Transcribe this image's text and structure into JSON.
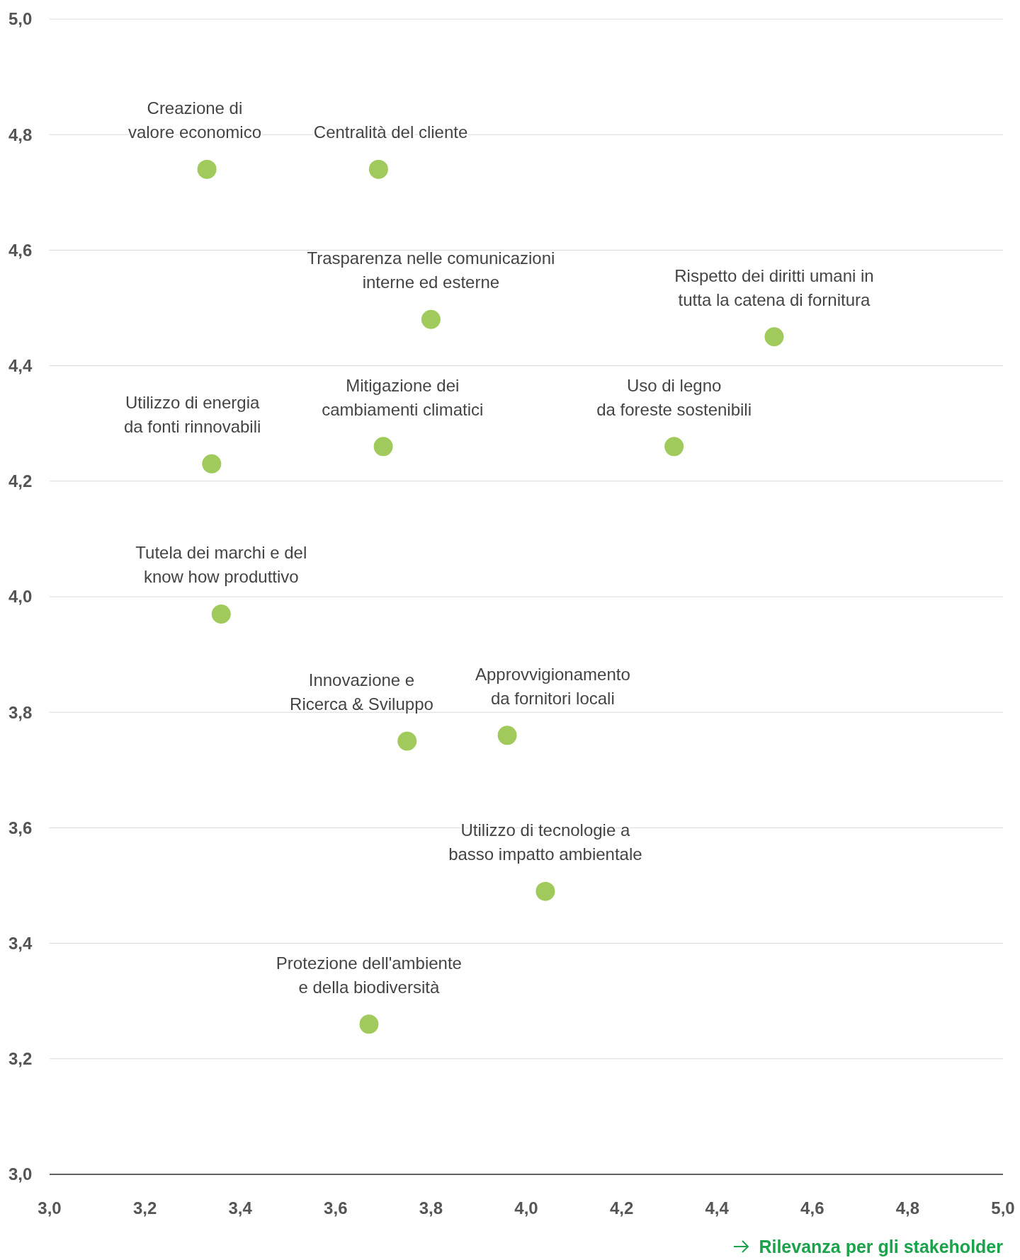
{
  "chart_data": {
    "type": "scatter",
    "xlabel": "Rilevanza per gli stakeholder",
    "xlim": [
      3,
      5
    ],
    "ylim": [
      3,
      5
    ],
    "xticks": [
      {
        "value": 3,
        "label": "3,0"
      },
      {
        "value": 3.2,
        "label": "3,2"
      },
      {
        "value": 3.4,
        "label": "3,4"
      },
      {
        "value": 3.6,
        "label": "3,6"
      },
      {
        "value": 3.8,
        "label": "3,8"
      },
      {
        "value": 4,
        "label": "4,0"
      },
      {
        "value": 4.2,
        "label": "4,2"
      },
      {
        "value": 4.4,
        "label": "4,4"
      },
      {
        "value": 4.6,
        "label": "4,6"
      },
      {
        "value": 4.8,
        "label": "4,8"
      },
      {
        "value": 5,
        "label": "5,0"
      }
    ],
    "yticks": [
      {
        "value": 3,
        "label": "3,0"
      },
      {
        "value": 3.2,
        "label": "3,2"
      },
      {
        "value": 3.4,
        "label": "3,4"
      },
      {
        "value": 3.6,
        "label": "3,6"
      },
      {
        "value": 3.8,
        "label": "3,8"
      },
      {
        "value": 4,
        "label": "4,0"
      },
      {
        "value": 4.2,
        "label": "4,2"
      },
      {
        "value": 4.4,
        "label": "4,4"
      },
      {
        "value": 4.6,
        "label": "4,6"
      },
      {
        "value": 4.8,
        "label": "4,8"
      },
      {
        "value": 5,
        "label": "5,0"
      }
    ],
    "grid": "y",
    "marker": "circle",
    "series": [
      {
        "color": "#a0cb5c",
        "x": [
          3.33,
          3.69,
          3.8,
          4.52,
          3.34,
          3.7,
          4.31,
          3.36,
          3.75,
          3.96,
          4.04,
          3.67
        ],
        "values": [
          4.74,
          4.74,
          4.48,
          4.45,
          4.23,
          4.26,
          4.26,
          3.97,
          3.75,
          3.76,
          3.49,
          3.26
        ]
      }
    ],
    "annotations": [
      {
        "text": "Creazione di\nvalore economico",
        "x": 3.33,
        "y": 4.74
      },
      {
        "text": "Centralità del cliente",
        "x": 3.69,
        "y": 4.74
      },
      {
        "text": "Trasparenza nelle comunicazioni\ninterne ed esterne",
        "x": 3.8,
        "y": 4.48
      },
      {
        "text": "Rispetto dei diritti umani in\ntutta la catena di fornitura",
        "x": 4.52,
        "y": 4.45
      },
      {
        "text": "Utilizzo di energia\nda fonti rinnovabili",
        "x": 3.34,
        "y": 4.23
      },
      {
        "text": "Mitigazione dei\ncambiamenti climatici",
        "x": 3.7,
        "y": 4.26
      },
      {
        "text": "Uso di legno\nda foreste sostenibili",
        "x": 4.31,
        "y": 4.26
      },
      {
        "text": "Tutela dei marchi e del\nknow how produttivo",
        "x": 3.36,
        "y": 3.97
      },
      {
        "text": "Innovazione e\nRicerca & Sviluppo",
        "x": 3.75,
        "y": 3.75
      },
      {
        "text": "Approvvigionamento\nda fornitori locali",
        "x": 3.96,
        "y": 3.76
      },
      {
        "text": "Utilizzo di tecnologie a\nbasso impatto ambientale",
        "x": 4.04,
        "y": 3.49
      },
      {
        "text": "Protezione dell'ambiente\ne della biodiversità",
        "x": 3.67,
        "y": 3.26
      }
    ]
  }
}
